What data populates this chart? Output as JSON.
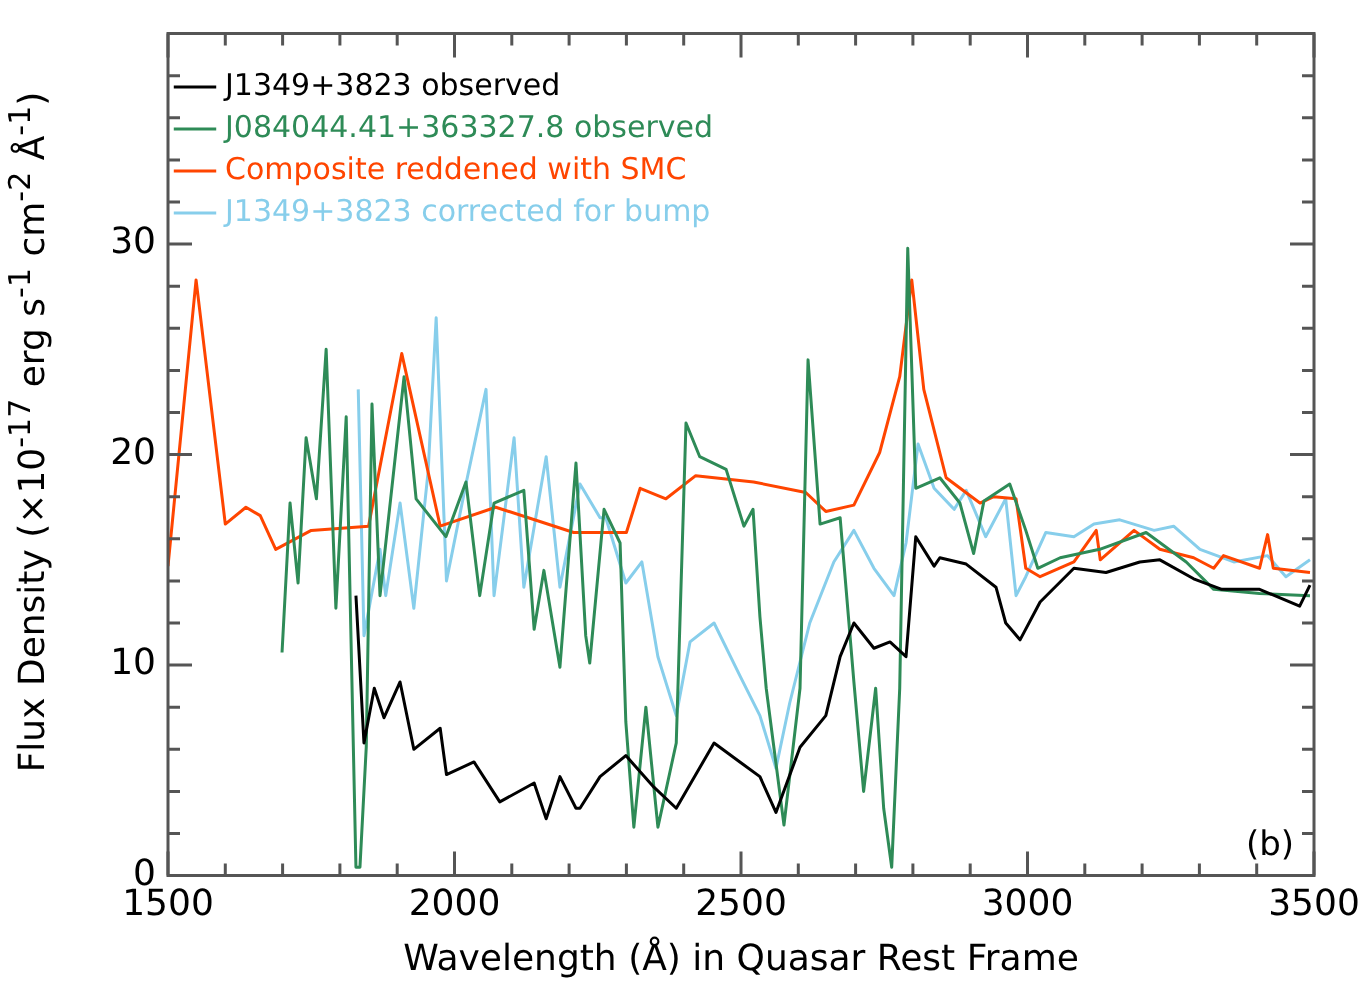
{
  "chart_data": {
    "type": "line",
    "xlabel": "Wavelength (Å) in Quasar Rest Frame",
    "ylabel": "Flux Density (×10$^{-17}$ erg s$^{-1}$ cm$^{-2}$ Å$^{-1}$)",
    "xlim": [
      1500,
      3500
    ],
    "ylim": [
      0,
      40
    ],
    "xticks": [
      1500,
      {
        "value": 1600,
        "label": null
      },
      {
        "value": 1700,
        "label": null
      },
      {
        "value": 1800,
        "label": null
      },
      {
        "value": 1900,
        "label": null
      },
      2000,
      {
        "value": 2100,
        "label": null
      },
      {
        "value": 2200,
        "label": null
      },
      {
        "value": 2300,
        "label": null
      },
      {
        "value": 2400,
        "label": null
      },
      2500,
      {
        "value": 2600,
        "label": null
      },
      {
        "value": 2700,
        "label": null
      },
      {
        "value": 2800,
        "label": null
      },
      {
        "value": 2900,
        "label": null
      },
      3000,
      {
        "value": 3100,
        "label": null
      },
      {
        "value": 3200,
        "label": null
      },
      {
        "value": 3300,
        "label": null
      },
      {
        "value": 3400,
        "label": null
      },
      3500
    ],
    "yticks": [
      0,
      {
        "value": 2,
        "label": null
      },
      {
        "value": 4,
        "label": null
      },
      {
        "value": 6,
        "label": null
      },
      {
        "value": 8,
        "label": null
      },
      10,
      {
        "value": 12,
        "label": null
      },
      {
        "value": 14,
        "label": null
      },
      {
        "value": 16,
        "label": null
      },
      {
        "value": 18,
        "label": null
      },
      20,
      {
        "value": 22,
        "label": null
      },
      {
        "value": 24,
        "label": null
      },
      {
        "value": 26,
        "label": null
      },
      {
        "value": 28,
        "label": null
      },
      30,
      {
        "value": 32,
        "label": null
      },
      {
        "value": 34,
        "label": null
      },
      {
        "value": 36,
        "label": null
      },
      {
        "value": 38,
        "label": null
      },
      {
        "value": 40,
        "label": null
      }
    ],
    "legend": "top left",
    "marker": "none",
    "line_style": "solid",
    "annotations": [
      "(b)"
    ],
    "series": [
      {
        "name": "J1349+3823 observed",
        "color": "#000000",
        "x": [
          1828,
          1842,
          1860,
          1877,
          1905,
          1929,
          1975,
          1986,
          2034,
          2079,
          2139,
          2160,
          2184,
          2212,
          2219,
          2254,
          2299,
          2348,
          2387,
          2453,
          2498,
          2533,
          2561,
          2603,
          2648,
          2673,
          2697,
          2732,
          2760,
          2788,
          2805,
          2837,
          2847,
          2893,
          2945,
          2962,
          2987,
          3022,
          3081,
          3137,
          3196,
          3231,
          3290,
          3339,
          3405,
          3475,
          3493
        ],
        "values": [
          13.3,
          6.3,
          8.9,
          7.5,
          9.2,
          6.0,
          7.0,
          4.8,
          5.4,
          3.5,
          4.4,
          2.7,
          4.7,
          3.2,
          3.2,
          4.7,
          5.7,
          4.2,
          3.2,
          6.3,
          5.4,
          4.7,
          3.0,
          6.1,
          7.6,
          10.4,
          12.0,
          10.8,
          11.1,
          10.4,
          16.1,
          14.7,
          15.1,
          14.8,
          13.7,
          12.0,
          11.2,
          13.0,
          14.6,
          14.4,
          14.9,
          15.0,
          14.1,
          13.6,
          13.6,
          12.8,
          13.8
        ]
      },
      {
        "name": "J084044.41+363327.8 observed",
        "color": "#2e8b57",
        "x": [
          1699,
          1713,
          1727,
          1741,
          1759,
          1776,
          1793,
          1811,
          1828,
          1835,
          1846,
          1856,
          1870,
          1912,
          1933,
          1985,
          2020,
          2044,
          2069,
          2121,
          2139,
          2156,
          2184,
          2212,
          2229,
          2236,
          2261,
          2289,
          2299,
          2313,
          2334,
          2355,
          2387,
          2404,
          2428,
          2474,
          2505,
          2521,
          2533,
          2544,
          2575,
          2603,
          2617,
          2638,
          2673,
          2697,
          2714,
          2735,
          2749,
          2763,
          2777,
          2791,
          2805,
          2847,
          2882,
          2906,
          2924,
          2969,
          2997,
          3018,
          3057,
          3126,
          3207,
          3277,
          3325,
          3405,
          3493
        ],
        "values": [
          10.6,
          17.7,
          13.9,
          20.8,
          17.9,
          25.0,
          12.7,
          21.8,
          0.4,
          0.4,
          6.1,
          22.4,
          13.3,
          23.7,
          17.9,
          16.1,
          18.7,
          13.3,
          17.7,
          18.3,
          11.7,
          14.5,
          9.9,
          19.6,
          11.4,
          10.1,
          17.4,
          15.8,
          7.3,
          2.3,
          8.0,
          2.3,
          6.3,
          21.5,
          19.9,
          19.3,
          16.6,
          17.4,
          12.3,
          8.9,
          2.4,
          8.9,
          24.5,
          16.7,
          17.0,
          9.2,
          4.0,
          8.9,
          3.2,
          0.4,
          8.9,
          29.8,
          18.4,
          18.9,
          17.7,
          15.3,
          17.8,
          18.6,
          16.4,
          14.6,
          15.1,
          15.5,
          16.3,
          14.9,
          13.6,
          13.4,
          13.3
        ]
      },
      {
        "name": "Composite reddened with SMC",
        "color": "#ff4500",
        "x": [
          1500,
          1549,
          1600,
          1636,
          1661,
          1688,
          1750,
          1850,
          1908,
          1975,
          2072,
          2208,
          2300,
          2324,
          2369,
          2421,
          2522,
          2613,
          2648,
          2697,
          2742,
          2777,
          2798,
          2819,
          2858,
          2917,
          2941,
          2980,
          2997,
          3022,
          3081,
          3120,
          3127,
          3186,
          3231,
          3290,
          3325,
          3342,
          3405,
          3419,
          3429,
          3493
        ],
        "values": [
          14.7,
          28.3,
          16.7,
          17.5,
          17.1,
          15.5,
          16.4,
          16.6,
          24.8,
          16.6,
          17.5,
          16.3,
          16.3,
          18.4,
          17.9,
          19.0,
          18.7,
          18.2,
          17.3,
          17.6,
          20.1,
          23.7,
          28.3,
          23.1,
          18.9,
          17.7,
          18.0,
          17.9,
          14.6,
          14.2,
          14.9,
          16.4,
          15.0,
          16.4,
          15.5,
          15.1,
          14.6,
          15.2,
          14.6,
          16.2,
          14.6,
          14.4
        ]
      },
      {
        "name": "J1349+3823 corrected for bump",
        "color": "#87ceeb",
        "x": [
          1832,
          1842,
          1870,
          1880,
          1905,
          1929,
          1954,
          1968,
          1986,
          2020,
          2055,
          2069,
          2104,
          2121,
          2160,
          2184,
          2219,
          2254,
          2264,
          2299,
          2327,
          2355,
          2387,
          2411,
          2453,
          2498,
          2533,
          2561,
          2585,
          2620,
          2662,
          2697,
          2732,
          2767,
          2788,
          2809,
          2837,
          2872,
          2893,
          2927,
          2962,
          2980,
          2997,
          3032,
          3081,
          3116,
          3161,
          3221,
          3255,
          3301,
          3360,
          3419,
          3451,
          3493
        ],
        "values": [
          23.1,
          11.4,
          15.5,
          13.3,
          17.7,
          12.7,
          19.2,
          26.5,
          14.0,
          18.6,
          23.1,
          13.3,
          20.8,
          13.7,
          19.9,
          13.7,
          18.6,
          17.0,
          17.0,
          13.9,
          14.9,
          10.4,
          7.6,
          11.1,
          12.0,
          9.5,
          7.6,
          5.1,
          8.2,
          12.0,
          14.9,
          16.4,
          14.6,
          13.3,
          15.8,
          20.5,
          18.4,
          17.4,
          18.3,
          16.1,
          17.9,
          13.3,
          14.2,
          16.3,
          16.1,
          16.7,
          16.9,
          16.4,
          16.6,
          15.5,
          14.9,
          15.2,
          14.2,
          15.0
        ]
      }
    ]
  }
}
